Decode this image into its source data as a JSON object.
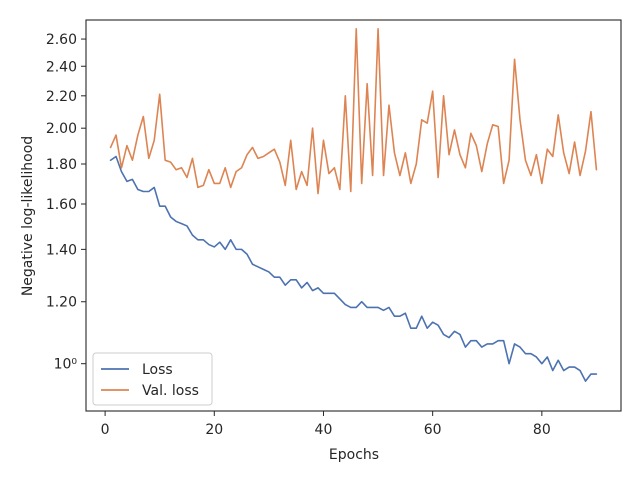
{
  "chart_data": {
    "type": "line",
    "xlabel": "Epochs",
    "ylabel": "Negative log-likelihood",
    "y_scale": "log",
    "xlim": [
      -3.5,
      94.5
    ],
    "ylim": [
      0.87,
      2.75
    ],
    "x_ticks": [
      0,
      20,
      40,
      60,
      80
    ],
    "x_tick_labels": [
      "0",
      "20",
      "40",
      "60",
      "80"
    ],
    "y_ticks": [
      1.0,
      1.2,
      1.4,
      1.6,
      1.8,
      2.0,
      2.2,
      2.4,
      2.6
    ],
    "y_tick_labels": [
      "10⁰",
      "1.20",
      "1.40",
      "1.60",
      "1.80",
      "2.00",
      "2.20",
      "2.40",
      "2.60"
    ],
    "grid": false,
    "legend_position": "lower-left",
    "x": [
      1,
      2,
      3,
      4,
      5,
      6,
      7,
      8,
      9,
      10,
      11,
      12,
      13,
      14,
      15,
      16,
      17,
      18,
      19,
      20,
      21,
      22,
      23,
      24,
      25,
      26,
      27,
      28,
      29,
      30,
      31,
      32,
      33,
      34,
      35,
      36,
      37,
      38,
      39,
      40,
      41,
      42,
      43,
      44,
      45,
      46,
      47,
      48,
      49,
      50,
      51,
      52,
      53,
      54,
      55,
      56,
      57,
      58,
      59,
      60,
      61,
      62,
      63,
      64,
      65,
      66,
      67,
      68,
      69,
      70,
      71,
      72,
      73,
      74,
      75,
      76,
      77,
      78,
      79,
      80,
      81,
      82,
      83,
      84,
      85,
      86,
      87,
      88,
      89,
      90
    ],
    "series": [
      {
        "name": "Loss",
        "color": "#4c72b0",
        "values": [
          1.82,
          1.84,
          1.76,
          1.71,
          1.72,
          1.67,
          1.66,
          1.66,
          1.68,
          1.59,
          1.59,
          1.54,
          1.52,
          1.51,
          1.5,
          1.46,
          1.44,
          1.44,
          1.42,
          1.41,
          1.43,
          1.4,
          1.44,
          1.4,
          1.4,
          1.38,
          1.34,
          1.33,
          1.32,
          1.31,
          1.29,
          1.29,
          1.26,
          1.28,
          1.28,
          1.25,
          1.27,
          1.24,
          1.25,
          1.23,
          1.23,
          1.23,
          1.21,
          1.19,
          1.18,
          1.18,
          1.2,
          1.18,
          1.18,
          1.18,
          1.17,
          1.18,
          1.15,
          1.15,
          1.16,
          1.11,
          1.11,
          1.15,
          1.11,
          1.13,
          1.12,
          1.09,
          1.08,
          1.1,
          1.09,
          1.05,
          1.07,
          1.07,
          1.05,
          1.06,
          1.06,
          1.07,
          1.07,
          1.0,
          1.06,
          1.05,
          1.03,
          1.03,
          1.02,
          1.0,
          1.02,
          0.98,
          1.01,
          0.98,
          0.99,
          0.99,
          0.98,
          0.95,
          0.97,
          0.97
        ]
      },
      {
        "name": "Val. loss",
        "color": "#dd8452",
        "values": [
          1.89,
          1.96,
          1.78,
          1.9,
          1.82,
          1.96,
          2.07,
          1.83,
          1.93,
          2.21,
          1.82,
          1.81,
          1.77,
          1.78,
          1.73,
          1.83,
          1.68,
          1.69,
          1.77,
          1.7,
          1.7,
          1.78,
          1.68,
          1.76,
          1.78,
          1.85,
          1.89,
          1.83,
          1.84,
          1.86,
          1.88,
          1.81,
          1.69,
          1.93,
          1.67,
          1.76,
          1.69,
          2.0,
          1.65,
          1.93,
          1.75,
          1.78,
          1.67,
          2.2,
          1.66,
          2.68,
          1.7,
          2.28,
          1.74,
          2.68,
          1.74,
          2.14,
          1.86,
          1.74,
          1.86,
          1.7,
          1.8,
          2.05,
          2.03,
          2.23,
          1.73,
          2.2,
          1.85,
          1.99,
          1.85,
          1.78,
          1.97,
          1.9,
          1.76,
          1.91,
          2.02,
          2.01,
          1.7,
          1.82,
          2.45,
          2.05,
          1.82,
          1.74,
          1.85,
          1.7,
          1.88,
          1.84,
          2.08,
          1.86,
          1.75,
          1.92,
          1.74,
          1.87,
          2.1,
          1.77
        ]
      }
    ]
  }
}
